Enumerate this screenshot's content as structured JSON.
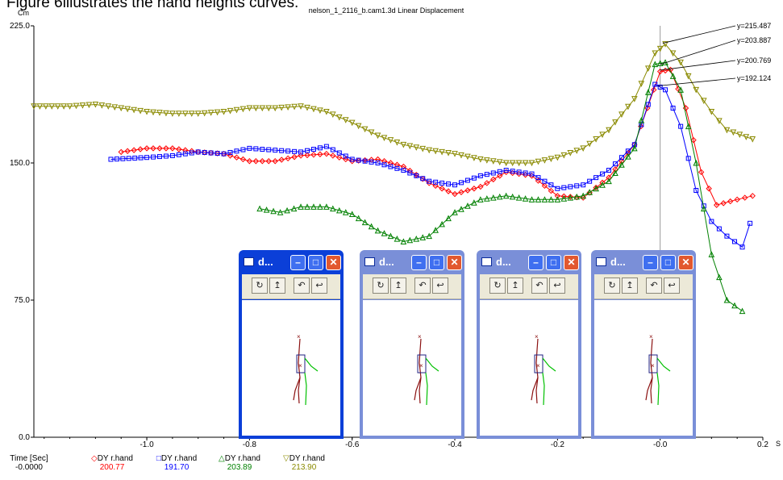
{
  "caption": "Figure 6illustrates the hand heights curves.",
  "chart_data": {
    "type": "line",
    "title": "nelson_1_2116_b.cam1.3d Linear Displacement",
    "ylabel": "Cm",
    "xlabel": "S",
    "xlim": [
      -1.22,
      0.2
    ],
    "ylim": [
      0,
      225
    ],
    "x_ticks": [
      -1.0,
      -0.8,
      -0.6,
      -0.4,
      -0.2,
      -0.0,
      0.2
    ],
    "x_tick_labels": [
      "-1.0",
      "-0.8",
      "-0.6",
      "-0.4",
      "-0.2",
      "-0.0",
      "0.2"
    ],
    "y_ticks": [
      0,
      75,
      150,
      225
    ],
    "y_tick_labels": [
      "0.0",
      "75.0",
      "150.0",
      "225.0"
    ],
    "cursor_x": 0.0,
    "annotations": [
      "y=215.487",
      "y=203.887",
      "y=200.769",
      "y=192.124"
    ],
    "annotation_targets": [
      {
        "x": 0.005,
        "y": 215.487
      },
      {
        "x": 0.0,
        "y": 203.887
      },
      {
        "x": 0.0,
        "y": 200.769
      },
      {
        "x": -0.005,
        "y": 192.124
      }
    ],
    "legend": {
      "placement": "bottom",
      "time_label": "Time [Sec]",
      "time_value": "-0.0000",
      "entries": [
        {
          "marker": "diamond",
          "label": "DY r.hand",
          "value": "200.77",
          "color": "#ff0000"
        },
        {
          "marker": "square",
          "label": "DY r.hand",
          "value": "191.70",
          "color": "#0000ff"
        },
        {
          "marker": "triangle-up",
          "label": "DY r.hand",
          "value": "203.89",
          "color": "#008000"
        },
        {
          "marker": "triangle-down",
          "label": "DY r.hand",
          "value": "213.90",
          "color": "#8a8a00"
        }
      ]
    },
    "series": [
      {
        "color": "#ff0000",
        "marker": "diamond",
        "points": [
          [
            -1.05,
            156
          ],
          [
            -1.0,
            158
          ],
          [
            -0.95,
            158
          ],
          [
            -0.9,
            156
          ],
          [
            -0.85,
            155
          ],
          [
            -0.8,
            151
          ],
          [
            -0.75,
            151
          ],
          [
            -0.7,
            154
          ],
          [
            -0.65,
            155
          ],
          [
            -0.6,
            151
          ],
          [
            -0.55,
            152
          ],
          [
            -0.5,
            148
          ],
          [
            -0.45,
            139
          ],
          [
            -0.4,
            133
          ],
          [
            -0.35,
            137
          ],
          [
            -0.3,
            145
          ],
          [
            -0.25,
            143
          ],
          [
            -0.2,
            132
          ],
          [
            -0.15,
            131
          ],
          [
            -0.1,
            142
          ],
          [
            -0.05,
            160
          ],
          [
            0.0,
            200
          ],
          [
            0.02,
            201
          ],
          [
            0.05,
            180
          ],
          [
            0.08,
            145
          ],
          [
            0.11,
            127
          ],
          [
            0.15,
            130
          ],
          [
            0.18,
            132
          ]
        ]
      },
      {
        "color": "#0000ff",
        "marker": "square",
        "points": [
          [
            -1.07,
            152
          ],
          [
            -1.0,
            153
          ],
          [
            -0.95,
            154
          ],
          [
            -0.9,
            156
          ],
          [
            -0.85,
            155
          ],
          [
            -0.8,
            158
          ],
          [
            -0.75,
            157
          ],
          [
            -0.7,
            156
          ],
          [
            -0.65,
            159
          ],
          [
            -0.6,
            152
          ],
          [
            -0.55,
            150
          ],
          [
            -0.5,
            146
          ],
          [
            -0.45,
            140
          ],
          [
            -0.4,
            138
          ],
          [
            -0.35,
            143
          ],
          [
            -0.3,
            146
          ],
          [
            -0.25,
            144
          ],
          [
            -0.2,
            136
          ],
          [
            -0.15,
            138
          ],
          [
            -0.1,
            146
          ],
          [
            -0.05,
            160
          ],
          [
            -0.01,
            193
          ],
          [
            0.01,
            190
          ],
          [
            0.04,
            170
          ],
          [
            0.07,
            135
          ],
          [
            0.1,
            118
          ],
          [
            0.13,
            110
          ],
          [
            0.16,
            104
          ],
          [
            0.175,
            117
          ]
        ]
      },
      {
        "color": "#008000",
        "marker": "triangle-up",
        "points": [
          [
            -0.78,
            125
          ],
          [
            -0.74,
            123
          ],
          [
            -0.7,
            126
          ],
          [
            -0.65,
            126
          ],
          [
            -0.6,
            122
          ],
          [
            -0.55,
            113
          ],
          [
            -0.5,
            107
          ],
          [
            -0.45,
            110
          ],
          [
            -0.4,
            123
          ],
          [
            -0.35,
            130
          ],
          [
            -0.3,
            132
          ],
          [
            -0.25,
            130
          ],
          [
            -0.2,
            130
          ],
          [
            -0.15,
            132
          ],
          [
            -0.1,
            140
          ],
          [
            -0.05,
            158
          ],
          [
            -0.01,
            204
          ],
          [
            0.01,
            205
          ],
          [
            0.04,
            190
          ],
          [
            0.07,
            150
          ],
          [
            0.1,
            100
          ],
          [
            0.13,
            75
          ],
          [
            0.16,
            69
          ]
        ]
      },
      {
        "color": "#8a8a00",
        "marker": "triangle-down",
        "points": [
          [
            -1.22,
            181
          ],
          [
            -1.15,
            181
          ],
          [
            -1.1,
            182
          ],
          [
            -1.05,
            180
          ],
          [
            -1.0,
            178
          ],
          [
            -0.95,
            177
          ],
          [
            -0.9,
            177
          ],
          [
            -0.85,
            178
          ],
          [
            -0.8,
            180
          ],
          [
            -0.75,
            180
          ],
          [
            -0.7,
            181
          ],
          [
            -0.65,
            178
          ],
          [
            -0.6,
            172
          ],
          [
            -0.55,
            165
          ],
          [
            -0.5,
            160
          ],
          [
            -0.45,
            157
          ],
          [
            -0.4,
            155
          ],
          [
            -0.35,
            152
          ],
          [
            -0.3,
            150
          ],
          [
            -0.25,
            150
          ],
          [
            -0.2,
            153
          ],
          [
            -0.15,
            158
          ],
          [
            -0.1,
            168
          ],
          [
            -0.05,
            185
          ],
          [
            -0.01,
            210
          ],
          [
            0.01,
            215
          ],
          [
            0.04,
            205
          ],
          [
            0.07,
            190
          ],
          [
            0.1,
            178
          ],
          [
            0.13,
            168
          ],
          [
            0.18,
            163
          ]
        ]
      }
    ]
  },
  "windows": [
    {
      "title": "d...",
      "active": true
    },
    {
      "title": "d...",
      "active": false
    },
    {
      "title": "d...",
      "active": false
    },
    {
      "title": "d...",
      "active": false
    }
  ],
  "window_buttons": {
    "minimize": "–",
    "maximize": "□",
    "close": "✕"
  },
  "toolbar_icons": [
    "rotate-x-icon",
    "rotate-y-icon",
    "rotate-left-icon",
    "rotate-right-icon"
  ],
  "toolbar_glyphs": [
    "↻",
    "↥",
    "↶",
    "↩"
  ]
}
